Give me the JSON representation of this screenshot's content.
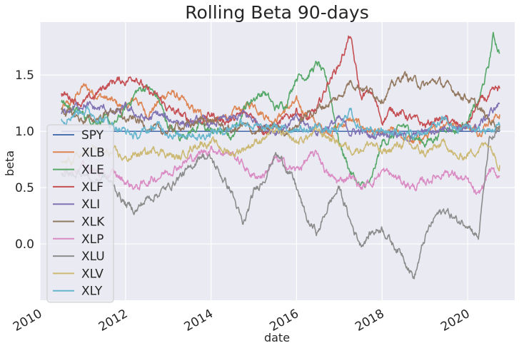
{
  "chart_data": {
    "type": "line",
    "title": "Rolling Beta 90-days",
    "xlabel": "date",
    "ylabel": "beta",
    "x_ticks": [
      "2010",
      "2012",
      "2014",
      "2016",
      "2018",
      "2020"
    ],
    "y_ticks": [
      "0.0",
      "0.5",
      "1.0",
      "1.5"
    ],
    "xlim": [
      2010.0,
      2021.1
    ],
    "ylim": [
      -0.5,
      1.97
    ],
    "grid": true,
    "legend_position": "lower-left",
    "x_step": 0.25,
    "series": [
      {
        "name": "SPY",
        "color": "#4c72b0",
        "x": [
          2010.5,
          2020.75
        ],
        "y": [
          1.0,
          1.0
        ]
      },
      {
        "name": "XLB",
        "color": "#dd8452",
        "x": [
          2010.5,
          2010.75,
          2011.0,
          2011.25,
          2011.5,
          2011.75,
          2012.0,
          2012.25,
          2012.5,
          2012.75,
          2013.0,
          2013.25,
          2013.5,
          2013.75,
          2014.0,
          2014.25,
          2014.5,
          2014.75,
          2015.0,
          2015.25,
          2015.5,
          2015.75,
          2016.0,
          2016.25,
          2016.5,
          2016.75,
          2017.0,
          2017.25,
          2017.5,
          2017.75,
          2018.0,
          2018.25,
          2018.5,
          2018.75,
          2019.0,
          2019.25,
          2019.5,
          2019.75,
          2020.0,
          2020.25,
          2020.5,
          2020.75
        ],
        "y": [
          1.2,
          1.25,
          1.4,
          1.35,
          1.3,
          1.25,
          1.2,
          1.3,
          1.15,
          1.25,
          1.35,
          1.3,
          1.2,
          1.15,
          1.1,
          1.1,
          1.15,
          1.2,
          1.25,
          1.15,
          1.1,
          1.2,
          1.25,
          1.15,
          1.05,
          1.0,
          1.05,
          1.1,
          1.05,
          1.0,
          0.95,
          1.0,
          0.95,
          0.9,
          0.95,
          1.0,
          1.1,
          1.05,
          1.05,
          1.0,
          1.1,
          1.15
        ]
      },
      {
        "name": "XLE",
        "color": "#55a868",
        "x": [
          2010.5,
          2010.75,
          2011.0,
          2011.25,
          2011.5,
          2011.75,
          2012.0,
          2012.25,
          2012.5,
          2012.75,
          2013.0,
          2013.25,
          2013.5,
          2013.75,
          2014.0,
          2014.25,
          2014.5,
          2014.75,
          2015.0,
          2015.25,
          2015.5,
          2015.75,
          2016.0,
          2016.25,
          2016.5,
          2016.75,
          2017.0,
          2017.25,
          2017.5,
          2017.75,
          2018.0,
          2018.25,
          2018.5,
          2018.75,
          2019.0,
          2019.25,
          2019.5,
          2019.75,
          2020.0,
          2020.25,
          2020.5,
          2020.6,
          2020.75
        ],
        "y": [
          1.25,
          1.2,
          1.15,
          1.1,
          1.1,
          1.05,
          1.2,
          1.35,
          1.4,
          1.3,
          1.05,
          0.95,
          1.0,
          1.05,
          1.0,
          1.0,
          0.95,
          1.2,
          1.3,
          1.35,
          1.2,
          1.25,
          1.5,
          1.5,
          1.6,
          1.4,
          0.9,
          0.65,
          0.5,
          0.55,
          0.9,
          0.95,
          1.05,
          0.95,
          0.9,
          0.95,
          1.05,
          1.0,
          1.1,
          1.25,
          1.6,
          1.85,
          1.7
        ]
      },
      {
        "name": "XLF",
        "color": "#c44e52",
        "x": [
          2010.5,
          2010.75,
          2011.0,
          2011.25,
          2011.5,
          2011.75,
          2012.0,
          2012.25,
          2012.5,
          2012.75,
          2013.0,
          2013.25,
          2013.5,
          2013.75,
          2014.0,
          2014.25,
          2014.5,
          2014.75,
          2015.0,
          2015.25,
          2015.5,
          2015.75,
          2016.0,
          2016.25,
          2016.5,
          2016.75,
          2017.0,
          2017.25,
          2017.5,
          2017.75,
          2018.0,
          2018.25,
          2018.5,
          2018.75,
          2019.0,
          2019.25,
          2019.5,
          2019.75,
          2020.0,
          2020.25,
          2020.5,
          2020.75
        ],
        "y": [
          1.33,
          1.3,
          1.25,
          1.3,
          1.4,
          1.45,
          1.45,
          1.5,
          1.35,
          1.3,
          1.2,
          1.15,
          1.1,
          1.1,
          1.15,
          1.1,
          1.1,
          1.15,
          1.15,
          1.0,
          1.05,
          1.1,
          1.2,
          1.1,
          1.2,
          1.45,
          1.6,
          1.85,
          1.3,
          1.35,
          1.1,
          1.2,
          1.15,
          1.1,
          1.05,
          1.1,
          1.1,
          1.05,
          1.05,
          1.25,
          1.3,
          1.38
        ]
      },
      {
        "name": "XLI",
        "color": "#8172b3",
        "x": [
          2010.5,
          2010.75,
          2011.0,
          2011.25,
          2011.5,
          2011.75,
          2012.0,
          2012.25,
          2012.5,
          2012.75,
          2013.0,
          2013.25,
          2013.5,
          2013.75,
          2014.0,
          2014.25,
          2014.5,
          2014.75,
          2015.0,
          2015.25,
          2015.5,
          2015.75,
          2016.0,
          2016.25,
          2016.5,
          2016.75,
          2017.0,
          2017.25,
          2017.5,
          2017.75,
          2018.0,
          2018.25,
          2018.5,
          2018.75,
          2019.0,
          2019.25,
          2019.5,
          2019.75,
          2020.0,
          2020.25,
          2020.5,
          2020.75
        ],
        "y": [
          1.15,
          1.2,
          1.25,
          1.2,
          1.2,
          1.15,
          1.2,
          1.15,
          1.1,
          1.15,
          1.1,
          1.1,
          1.05,
          1.1,
          1.05,
          1.1,
          1.1,
          1.15,
          1.1,
          1.05,
          1.0,
          1.05,
          1.1,
          1.05,
          1.0,
          1.05,
          1.1,
          1.0,
          1.0,
          0.95,
          1.0,
          1.0,
          0.95,
          0.95,
          1.0,
          1.0,
          1.05,
          1.05,
          1.0,
          1.05,
          1.15,
          1.25
        ]
      },
      {
        "name": "XLK",
        "color": "#937860",
        "x": [
          2010.5,
          2010.75,
          2011.0,
          2011.25,
          2011.5,
          2011.75,
          2012.0,
          2012.25,
          2012.5,
          2012.75,
          2013.0,
          2013.25,
          2013.5,
          2013.75,
          2014.0,
          2014.25,
          2014.5,
          2014.75,
          2015.0,
          2015.25,
          2015.5,
          2015.75,
          2016.0,
          2016.25,
          2016.5,
          2016.75,
          2017.0,
          2017.25,
          2017.5,
          2017.75,
          2018.0,
          2018.25,
          2018.5,
          2018.75,
          2019.0,
          2019.25,
          2019.5,
          2019.75,
          2020.0,
          2020.25,
          2020.5,
          2020.75
        ],
        "y": [
          1.2,
          1.15,
          1.1,
          1.1,
          1.15,
          1.2,
          1.1,
          1.1,
          1.05,
          1.0,
          1.0,
          1.05,
          1.05,
          1.1,
          1.1,
          1.05,
          1.0,
          1.05,
          1.0,
          1.0,
          1.05,
          1.0,
          1.05,
          1.15,
          1.2,
          1.25,
          1.3,
          1.45,
          1.4,
          1.35,
          1.3,
          1.4,
          1.5,
          1.45,
          1.4,
          1.45,
          1.4,
          1.35,
          1.3,
          1.2,
          1.1,
          1.05
        ]
      },
      {
        "name": "XLP",
        "color": "#da8bc3",
        "x": [
          2010.5,
          2010.75,
          2011.0,
          2011.25,
          2011.5,
          2011.75,
          2012.0,
          2012.25,
          2012.5,
          2012.75,
          2013.0,
          2013.25,
          2013.5,
          2013.75,
          2014.0,
          2014.25,
          2014.5,
          2014.75,
          2015.0,
          2015.25,
          2015.5,
          2015.75,
          2016.0,
          2016.25,
          2016.5,
          2016.75,
          2017.0,
          2017.25,
          2017.5,
          2017.75,
          2018.0,
          2018.25,
          2018.5,
          2018.75,
          2019.0,
          2019.25,
          2019.5,
          2019.75,
          2020.0,
          2020.25,
          2020.5,
          2020.75
        ],
        "y": [
          0.62,
          0.65,
          0.7,
          0.65,
          0.6,
          0.62,
          0.55,
          0.5,
          0.55,
          0.6,
          0.65,
          0.7,
          0.75,
          0.8,
          0.85,
          0.82,
          0.8,
          0.7,
          0.6,
          0.62,
          0.75,
          0.7,
          0.65,
          0.75,
          0.8,
          0.6,
          0.55,
          0.62,
          0.5,
          0.55,
          0.65,
          0.6,
          0.55,
          0.5,
          0.55,
          0.6,
          0.65,
          0.6,
          0.55,
          0.4,
          0.65,
          0.6
        ]
      },
      {
        "name": "XLU",
        "color": "#8c8c8c",
        "x": [
          2010.5,
          2010.75,
          2011.0,
          2011.25,
          2011.5,
          2011.75,
          2012.0,
          2012.25,
          2012.5,
          2012.75,
          2013.0,
          2013.25,
          2013.5,
          2013.75,
          2014.0,
          2014.25,
          2014.5,
          2014.75,
          2015.0,
          2015.25,
          2015.5,
          2015.75,
          2016.0,
          2016.25,
          2016.5,
          2016.75,
          2017.0,
          2017.25,
          2017.5,
          2017.75,
          2018.0,
          2018.25,
          2018.5,
          2018.75,
          2019.0,
          2019.25,
          2019.5,
          2019.75,
          2020.0,
          2020.25,
          2020.5,
          2020.75
        ],
        "y": [
          0.65,
          0.6,
          0.65,
          0.55,
          0.6,
          0.5,
          0.35,
          0.3,
          0.4,
          0.45,
          0.5,
          0.6,
          0.65,
          0.8,
          0.75,
          0.6,
          0.45,
          0.15,
          0.45,
          0.6,
          0.8,
          0.7,
          0.5,
          0.2,
          0.1,
          0.35,
          0.5,
          0.2,
          0.0,
          0.1,
          0.15,
          0.0,
          -0.1,
          -0.3,
          0.05,
          0.25,
          0.3,
          0.2,
          0.2,
          0.05,
          0.9,
          1.0
        ]
      },
      {
        "name": "XLV",
        "color": "#ccb974",
        "x": [
          2010.5,
          2010.75,
          2011.0,
          2011.25,
          2011.5,
          2011.75,
          2012.0,
          2012.25,
          2012.5,
          2012.75,
          2013.0,
          2013.25,
          2013.5,
          2013.75,
          2014.0,
          2014.25,
          2014.5,
          2014.75,
          2015.0,
          2015.25,
          2015.5,
          2015.75,
          2016.0,
          2016.25,
          2016.5,
          2016.75,
          2017.0,
          2017.25,
          2017.5,
          2017.75,
          2018.0,
          2018.25,
          2018.5,
          2018.75,
          2019.0,
          2019.25,
          2019.5,
          2019.75,
          2020.0,
          2020.25,
          2020.5,
          2020.75
        ],
        "y": [
          0.7,
          0.75,
          0.8,
          0.85,
          0.8,
          0.8,
          0.75,
          0.8,
          0.8,
          0.85,
          0.8,
          0.75,
          0.85,
          0.9,
          0.9,
          0.85,
          0.8,
          0.85,
          0.9,
          0.95,
          1.0,
          0.95,
          0.9,
          0.95,
          1.0,
          0.95,
          0.9,
          0.85,
          0.85,
          0.9,
          0.8,
          0.85,
          0.9,
          0.85,
          0.8,
          0.85,
          0.9,
          0.75,
          0.8,
          0.85,
          0.9,
          0.7
        ]
      },
      {
        "name": "XLY",
        "color": "#64b5cd",
        "x": [
          2010.5,
          2010.75,
          2011.0,
          2011.25,
          2011.5,
          2011.75,
          2012.0,
          2012.25,
          2012.5,
          2012.75,
          2013.0,
          2013.25,
          2013.5,
          2013.75,
          2014.0,
          2014.25,
          2014.5,
          2014.75,
          2015.0,
          2015.25,
          2015.5,
          2015.75,
          2016.0,
          2016.25,
          2016.5,
          2016.75,
          2017.0,
          2017.25,
          2017.5,
          2017.75,
          2018.0,
          2018.25,
          2018.5,
          2018.75,
          2019.0,
          2019.25,
          2019.5,
          2019.75,
          2020.0,
          2020.25,
          2020.5,
          2020.75
        ],
        "y": [
          1.1,
          1.15,
          1.2,
          1.15,
          1.1,
          1.05,
          1.0,
          0.95,
          1.0,
          1.05,
          1.0,
          0.95,
          1.0,
          0.95,
          1.0,
          1.0,
          1.05,
          1.1,
          1.05,
          1.0,
          1.05,
          1.0,
          1.05,
          1.0,
          1.05,
          1.0,
          1.0,
          1.2,
          1.0,
          1.05,
          1.0,
          1.0,
          1.0,
          0.95,
          1.0,
          1.05,
          1.1,
          1.0,
          1.05,
          1.0,
          1.0,
          1.05
        ]
      }
    ]
  }
}
